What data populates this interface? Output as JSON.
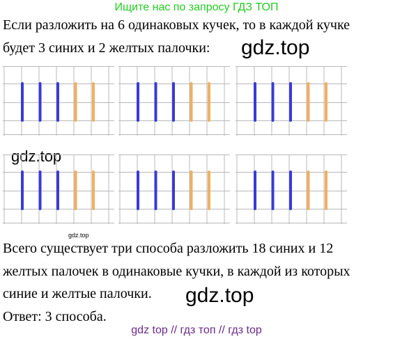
{
  "banner": "Ищите нас по запросу ГДЗ ТОП",
  "text": {
    "line1": "Если разложить на 6 одинаковых кучек, то в каждой кучке",
    "line2": "будет 3 синих и 2 желтых палочки:",
    "line3": "Всего существует три способа разложить 18 синих и 12",
    "line4": "желтых палочек в одинаковые кучки, в каждой из которых",
    "line5": "синие и желтые палочки.",
    "line6": "Ответ: 3 способа."
  },
  "watermarks": {
    "wm1": "gdz.top",
    "wm2": "gdz.top",
    "wm3": "gdz.top",
    "wm4": "gdz.top"
  },
  "footer": "gdz top  //  гдз топ  //  гдз top",
  "groups": {
    "count": 6,
    "blue_sticks": 3,
    "yellow_sticks": 2
  },
  "colors": {
    "blue": "#3a3ad6",
    "yellow": "#f0b060",
    "grid": "#b8b8b8",
    "banner": "#22cc22",
    "footer": "#6a2a8a"
  }
}
